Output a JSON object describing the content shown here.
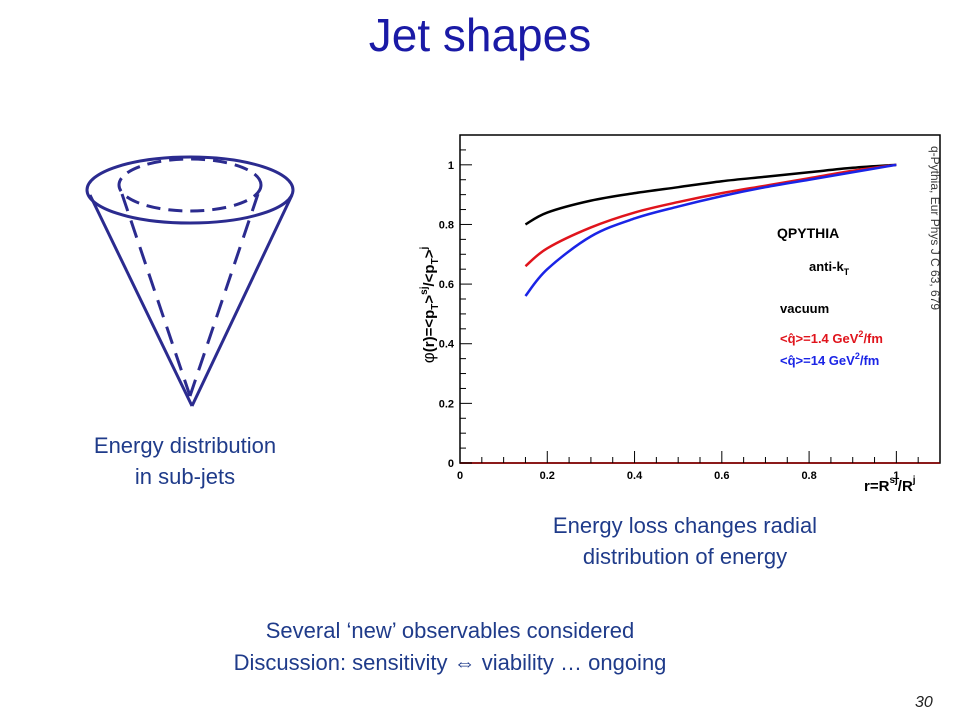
{
  "title": "Jet shapes",
  "cone_caption": [
    "Energy distribution",
    "in sub-jets"
  ],
  "reference": "q-Pythia, Eur Phys J C 63, 679",
  "plot_caption": [
    "Energy loss changes radial",
    "distribution of energy"
  ],
  "bottom_lines": [
    "Several ‘new’ observables considered",
    "Discussion: sensitivity ⇔ viability … ongoing"
  ],
  "slide_number": "30",
  "colors": {
    "title": "#1a1aa6",
    "text": "#1f3b8a",
    "cone": "#2b2b8f"
  },
  "chart_data": {
    "type": "line",
    "ylabel": "φ(r)=<pT>sj/<pT>j",
    "xlabel": "r=Rsj/Rj",
    "xlim": [
      0,
      1.1
    ],
    "ylim": [
      0,
      1.1
    ],
    "x_ticks": [
      "0",
      "0.2",
      "0.4",
      "0.6",
      "0.8",
      "1"
    ],
    "y_ticks": [
      "0",
      "0.2",
      "0.4",
      "0.6",
      "0.8",
      "1"
    ],
    "annotations": {
      "generator": "QPYTHIA",
      "algorithm": "anti-kT"
    },
    "series": [
      {
        "name": "vacuum",
        "color": "#000000",
        "x": [
          0.15,
          0.2,
          0.3,
          0.4,
          0.5,
          0.6,
          0.7,
          0.8,
          0.9,
          1.0
        ],
        "values": [
          0.8,
          0.84,
          0.88,
          0.905,
          0.925,
          0.945,
          0.96,
          0.975,
          0.99,
          1.0
        ]
      },
      {
        "name": "<q̂>=1.4 GeV²/fm",
        "color": "#e0141c",
        "x": [
          0.15,
          0.2,
          0.3,
          0.4,
          0.5,
          0.6,
          0.7,
          0.8,
          0.9,
          1.0
        ],
        "values": [
          0.66,
          0.72,
          0.79,
          0.84,
          0.875,
          0.905,
          0.93,
          0.955,
          0.98,
          1.0
        ]
      },
      {
        "name": "<q̂>=14 GeV²/fm",
        "color": "#1a24e6",
        "x": [
          0.15,
          0.2,
          0.3,
          0.4,
          0.5,
          0.6,
          0.7,
          0.8,
          0.9,
          1.0
        ],
        "values": [
          0.56,
          0.65,
          0.76,
          0.82,
          0.86,
          0.895,
          0.925,
          0.95,
          0.975,
          1.0
        ]
      }
    ]
  }
}
